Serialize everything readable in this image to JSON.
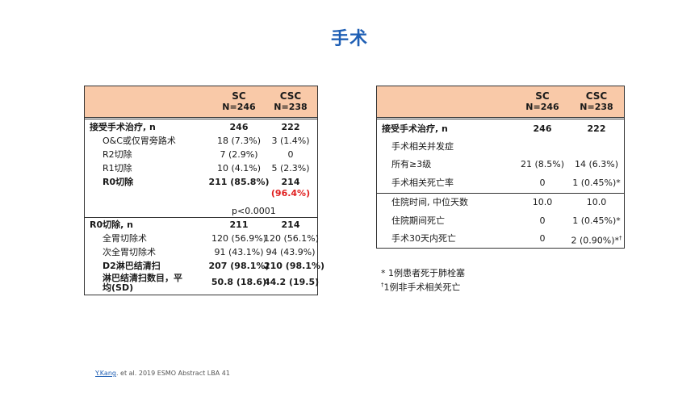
{
  "page": {
    "title": "手术"
  },
  "left_table": {
    "col1": {
      "name": "SC",
      "n": "N=246"
    },
    "col2": {
      "name": "CSC",
      "n": "N=238"
    },
    "rows": [
      {
        "label": "接受手术治疗, n",
        "v1": "246",
        "v2": "222"
      },
      {
        "label": "O&C或仅胃旁路术",
        "v1": "18 (7.3%)",
        "v2": "3 (1.4%)"
      },
      {
        "label": "R2切除",
        "v1": "7 (2.9%)",
        "v2": "0"
      },
      {
        "label": "R1切除",
        "v1": "10 (4.1%)",
        "v2": "5 (2.3%)"
      },
      {
        "label": "R0切除",
        "v1": "211 (85.8%)",
        "v2": "214",
        "v2_extra": "(96.4%)"
      },
      {
        "label": "",
        "v1": "p<0.0001",
        "v2": ""
      },
      {
        "label": "R0切除, n",
        "v1": "211",
        "v2": "214"
      },
      {
        "label": "全胃切除术",
        "v1": "120 (56.9%)",
        "v2": "120 (56.1%)"
      },
      {
        "label": "次全胃切除术",
        "v1": "91 (43.1%)",
        "v2": "94 (43.9%)"
      },
      {
        "label": "D2淋巴结清扫",
        "v1": "207 (98.1%)",
        "v2": "210 (98.1%)"
      },
      {
        "label": "淋巴结清扫数目，平",
        "label2": "均(SD)",
        "v1": "50.8 (18.6)",
        "v2": "44.2 (19.5)"
      }
    ]
  },
  "right_table": {
    "col1": {
      "name": "SC",
      "n": "N=246"
    },
    "col2": {
      "name": "CSC",
      "n": "N=238"
    },
    "rows": [
      {
        "label": "接受手术治疗, n",
        "v1": "246",
        "v2": "222"
      },
      {
        "label": "手术相关并发症",
        "v1": "",
        "v2": ""
      },
      {
        "label": "所有≥3级",
        "v1": "21 (8.5%)",
        "v2": "14 (6.3%)"
      },
      {
        "label": "手术相关死亡率",
        "v1": "0",
        "v2": "1 (0.45%)*"
      },
      {
        "label": "住院时间, 中位天数",
        "v1": "10.0",
        "v2": "10.0"
      },
      {
        "label": "住院期间死亡",
        "v1": "0",
        "v2": "1 (0.45%)*"
      },
      {
        "label": "手术30天内死亡",
        "v1": "0",
        "v2": "2 (0.90%)*",
        "v2_sup": "†"
      }
    ]
  },
  "footnotes": {
    "f1": "* 1例患者死于肺栓塞",
    "f2_mark": "†",
    "f2": "1例非手术相关死亡"
  },
  "citation": {
    "author": "Y.Kang",
    "rest": ". et al. 2019 ESMO Abstract LBA 41"
  }
}
